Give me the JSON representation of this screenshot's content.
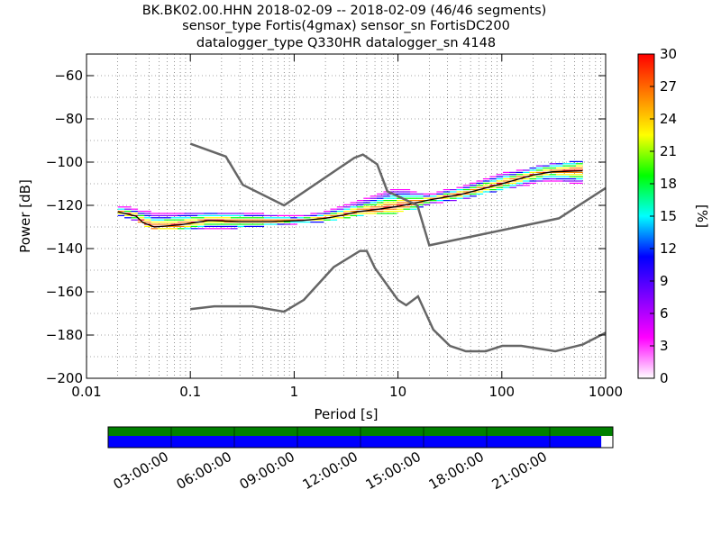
{
  "title": {
    "line1": "BK.BK02.00.HHN   2018-02-09 -- 2018-02-09  (46/46 segments)",
    "line2": "sensor_type Fortis(4gmax) sensor_sn FortisDC200",
    "line3": "datalogger_type Q330HR datalogger_sn 4148"
  },
  "chart_data": {
    "type": "heatmap",
    "xlabel": "Period [s]",
    "ylabel": "Power [dB]",
    "xscale": "log",
    "xlim": [
      0.01,
      1000
    ],
    "ylim": [
      -200,
      -50
    ],
    "xticks": [
      "0.01",
      "0.1",
      "1",
      "10",
      "100",
      "1000"
    ],
    "yticks": [
      "-200",
      "-180",
      "-160",
      "-140",
      "-120",
      "-100",
      "-80",
      "-60"
    ],
    "grid": true,
    "colorbar": {
      "label": "[%]",
      "min": 0,
      "max": 30,
      "ticks": [
        "0",
        "3",
        "6",
        "9",
        "12",
        "15",
        "18",
        "21",
        "24",
        "27",
        "30"
      ],
      "stops": [
        "#ffffff",
        "#ff00ff",
        "#8000ff",
        "#0000ff",
        "#00ffff",
        "#00ff00",
        "#ffff00",
        "#ff8000",
        "#ff0000"
      ]
    },
    "noise_models": [
      {
        "points": [
          [
            0.1,
            -168
          ],
          [
            0.17,
            -166.7
          ],
          [
            0.4,
            -166.7
          ],
          [
            0.8,
            -169.2
          ],
          [
            1.24,
            -163.7
          ],
          [
            2.4,
            -148.6
          ],
          [
            4.3,
            -141.1
          ],
          [
            5.0,
            -141.1
          ],
          [
            6.0,
            -149.0
          ],
          [
            10.0,
            -163.8
          ],
          [
            12.0,
            -166.2
          ],
          [
            15.6,
            -162.1
          ],
          [
            21.9,
            -177.5
          ],
          [
            31.6,
            -185.0
          ],
          [
            45.0,
            -187.5
          ],
          [
            70.0,
            -187.5
          ],
          [
            101.0,
            -185.0
          ],
          [
            154.0,
            -185.0
          ],
          [
            328.0,
            -187.5
          ],
          [
            600.0,
            -184.4
          ],
          [
            1000.0,
            -178.9
          ]
        ],
        "color": "#666666"
      },
      {
        "points": [
          [
            0.1,
            -91.5
          ],
          [
            0.22,
            -97.4
          ],
          [
            0.32,
            -110.5
          ],
          [
            0.8,
            -120.0
          ],
          [
            3.8,
            -98.0
          ],
          [
            4.6,
            -96.5
          ],
          [
            6.3,
            -101.0
          ],
          [
            7.9,
            -113.5
          ],
          [
            15.4,
            -120.0
          ],
          [
            20.0,
            -138.5
          ],
          [
            354.8,
            -126.0
          ],
          [
            1000.0,
            -112.0
          ]
        ],
        "color": "#666666"
      }
    ],
    "psd_mode": [
      [
        0.02,
        -123
      ],
      [
        0.03,
        -125
      ],
      [
        0.035,
        -128
      ],
      [
        0.045,
        -130
      ],
      [
        0.08,
        -129
      ],
      [
        0.15,
        -127
      ],
      [
        0.3,
        -127.5
      ],
      [
        0.6,
        -127.5
      ],
      [
        1.2,
        -127
      ],
      [
        2.0,
        -126
      ],
      [
        3.0,
        -124.5
      ],
      [
        4.0,
        -123
      ],
      [
        6.0,
        -122
      ],
      [
        10.0,
        -120.5
      ],
      [
        20.0,
        -117.5
      ],
      [
        40.0,
        -115
      ],
      [
        70.0,
        -112
      ],
      [
        100.0,
        -110
      ],
      [
        200.0,
        -106
      ],
      [
        300.0,
        -104.5
      ],
      [
        600.0,
        -104
      ]
    ],
    "psd_spread": [
      [
        0.02,
        -121,
        -124
      ],
      [
        0.05,
        -125,
        -131
      ],
      [
        0.1,
        -124,
        -131
      ],
      [
        0.3,
        -124,
        -130
      ],
      [
        1.0,
        -126,
        -128
      ],
      [
        2.0,
        -124,
        -127
      ],
      [
        5.0,
        -118,
        -124
      ],
      [
        10.0,
        -113,
        -123
      ],
      [
        20.0,
        -116,
        -119
      ],
      [
        50.0,
        -111,
        -116
      ],
      [
        100.0,
        -106,
        -112
      ],
      [
        300.0,
        -102,
        -108
      ],
      [
        600.0,
        -100,
        -110
      ]
    ]
  },
  "timeline": {
    "ticks": [
      "03:00:00",
      "06:00:00",
      "09:00:00",
      "12:00:00",
      "15:00:00",
      "18:00:00",
      "21:00:00"
    ],
    "data_coverage_fraction": 0.977,
    "gaps_color": "#008000",
    "data_color": "#0000ff"
  }
}
